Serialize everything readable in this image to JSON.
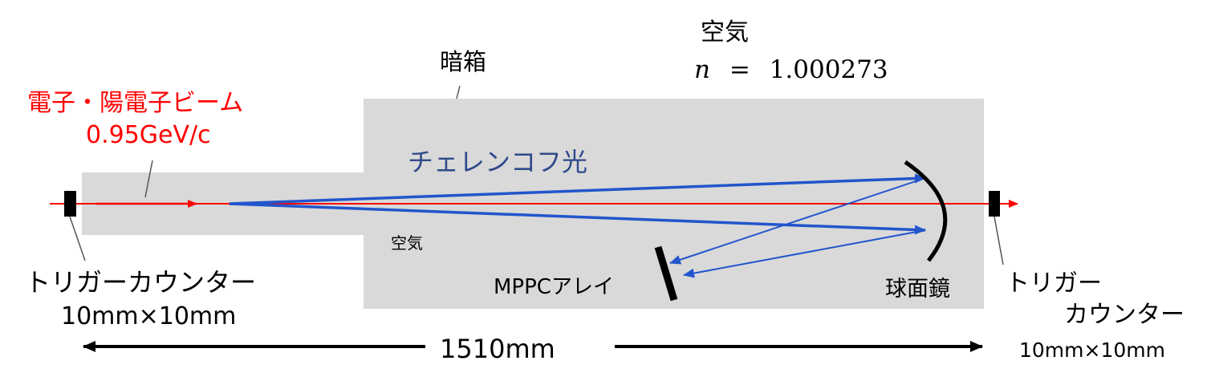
{
  "beam": {
    "label": "電子・陽電子ビーム",
    "momentum": "0.95GeV/c",
    "color": "#ff0000"
  },
  "dark_box": {
    "label": "暗箱",
    "inner_medium": "空気",
    "fill_color": "#d9d9d9"
  },
  "medium": {
    "label": "空気",
    "refractive_index": {
      "symbol": "n",
      "equals": "=",
      "value": "1.000273"
    }
  },
  "cherenkov_light": {
    "label": "チェレンコフ光",
    "color": "#2255cc",
    "label_color": "#2f4a8a"
  },
  "trigger_counter_left": {
    "label": "トリガーカウンター",
    "size": "10mm×10mm"
  },
  "trigger_counter_right": {
    "label_line1": "トリガー",
    "label_line2": "カウンター",
    "size": "10mm×10mm"
  },
  "mppc_array": {
    "label": "MPPCアレイ"
  },
  "spherical_mirror": {
    "label": "球面鏡"
  },
  "length_dimension": {
    "label": "1510mm"
  }
}
